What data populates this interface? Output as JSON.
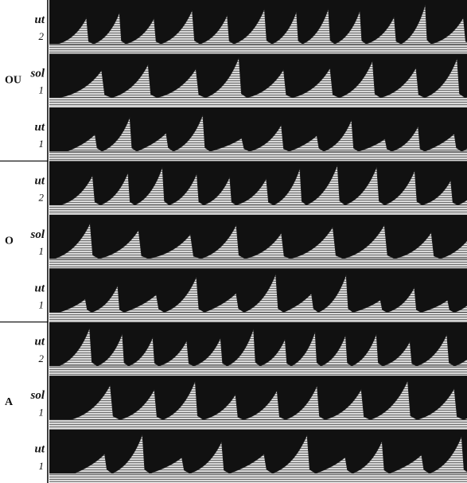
{
  "groups": [
    {
      "vowel": "OU",
      "rows": [
        {
          "note": "ut",
          "octave": 2
        },
        {
          "note": "sol",
          "octave": 1
        },
        {
          "note": "ut",
          "octave": 1
        }
      ]
    },
    {
      "vowel": "O",
      "rows": [
        {
          "note": "ut",
          "octave": 2
        },
        {
          "note": "sol",
          "octave": 1
        },
        {
          "note": "ut",
          "octave": 1
        }
      ]
    },
    {
      "vowel": "A",
      "rows": [
        {
          "note": "ut",
          "octave": 2
        },
        {
          "note": "sol",
          "octave": 1
        },
        {
          "note": "ut",
          "octave": 1
        }
      ]
    }
  ]
}
